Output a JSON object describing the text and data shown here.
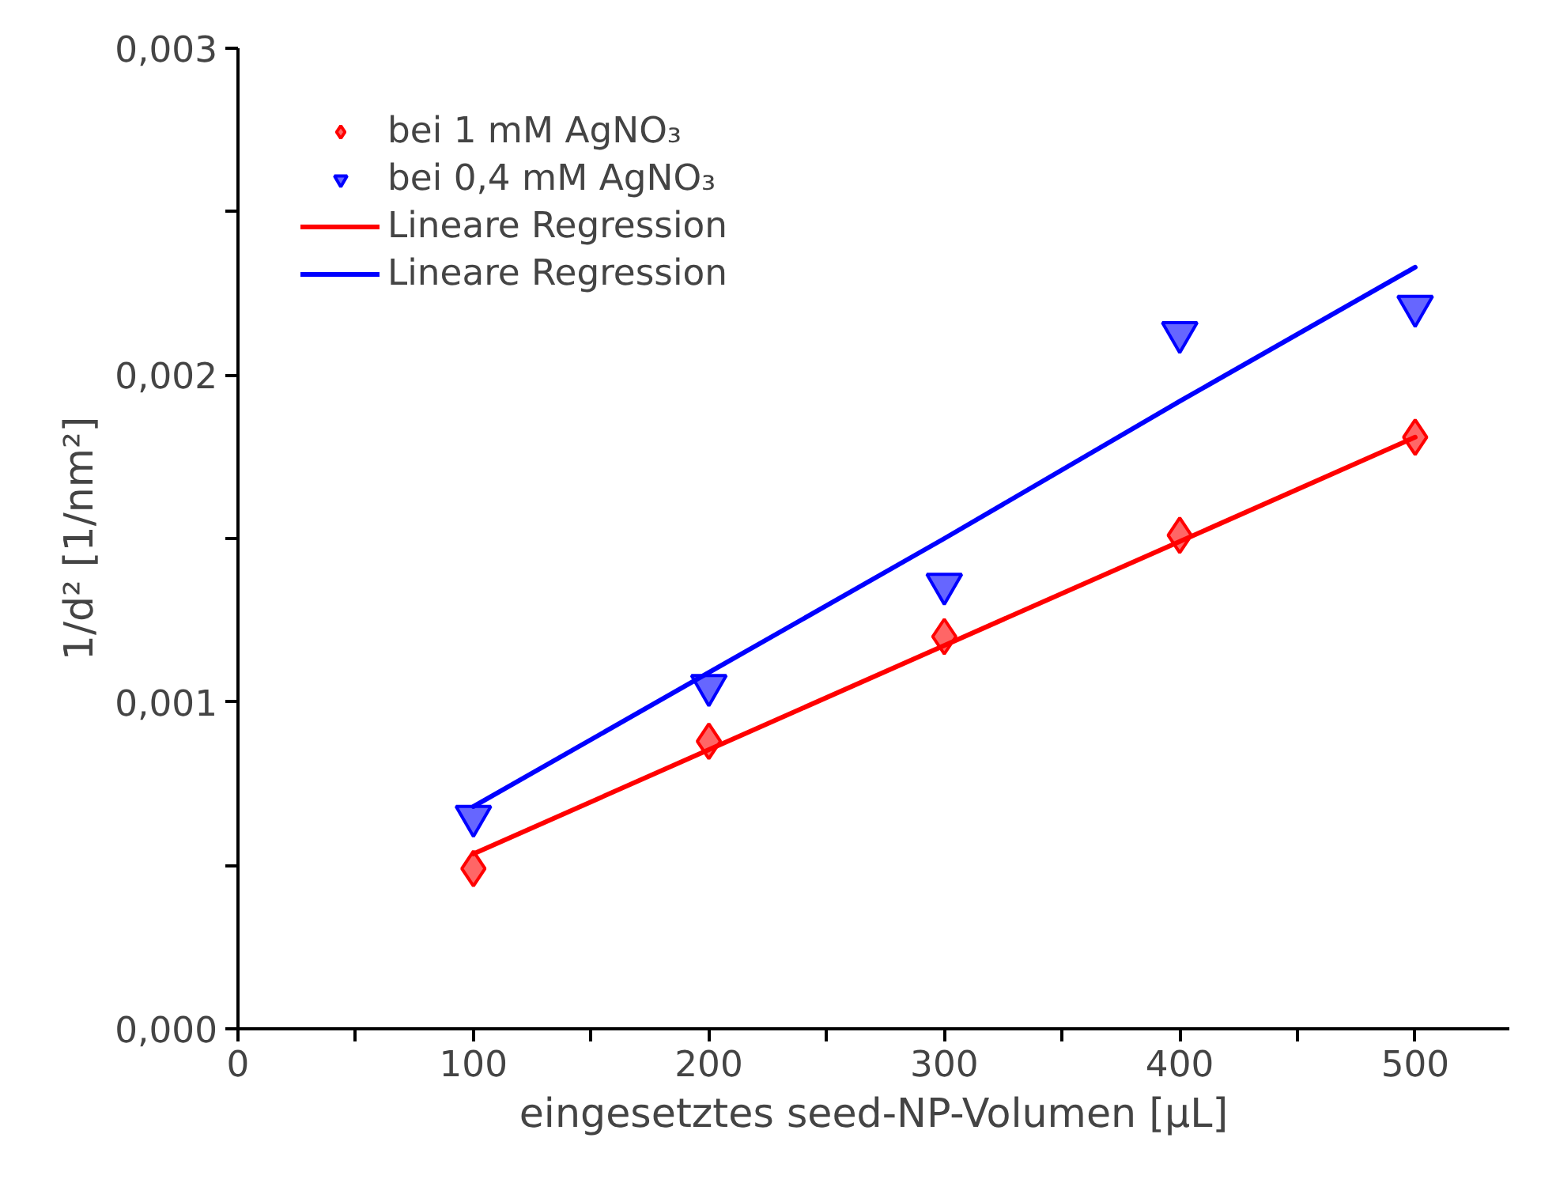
{
  "chart_data": {
    "type": "scatter",
    "xlabel": "eingesetztes seed-NP-Volumen [µL]",
    "ylabel": "1/d² [1/nm²]",
    "x": [
      100,
      200,
      300,
      400,
      500
    ],
    "series": [
      {
        "name": "bei 1 mM AgNO₃",
        "color": "#ff0000",
        "marker": "diamond",
        "values": [
          0.00049,
          0.00088,
          0.0012,
          0.00151,
          0.00181
        ]
      },
      {
        "name": "bei 0,4 mM AgNO₃",
        "color": "#0000ff",
        "marker": "triangle_down",
        "values": [
          0.00065,
          0.00105,
          0.00136,
          0.00213,
          0.00221
        ]
      },
      {
        "name": "Lineare Regression",
        "type": "line",
        "color": "#ff0000",
        "values": [
          0.000535,
          0.000854,
          0.001173,
          0.001491,
          0.00181
        ]
      },
      {
        "name": "Lineare Regression",
        "type": "line",
        "color": "#0000ff",
        "values": [
          0.00068,
          0.00109,
          0.0015,
          0.00192,
          0.00233
        ]
      }
    ],
    "xlim": [
      0,
      540
    ],
    "ylim": [
      0,
      0.003
    ],
    "xticks": [
      0,
      {
        "value": 50,
        "label": null
      },
      100,
      {
        "value": 150,
        "label": null
      },
      200,
      {
        "value": 250,
        "label": null
      },
      300,
      {
        "value": 350,
        "label": null
      },
      400,
      {
        "value": 450,
        "label": null
      },
      500
    ],
    "yticks": [
      {
        "value": 0,
        "label": "0,000"
      },
      {
        "value": 0.0005,
        "label": null
      },
      {
        "value": 0.001,
        "label": "0,001"
      },
      {
        "value": 0.0015,
        "label": null
      },
      {
        "value": 0.002,
        "label": "0,002"
      },
      {
        "value": 0.0025,
        "label": null
      },
      {
        "value": 0.003,
        "label": "0,003"
      }
    ],
    "grid": false,
    "legend": "top left"
  }
}
